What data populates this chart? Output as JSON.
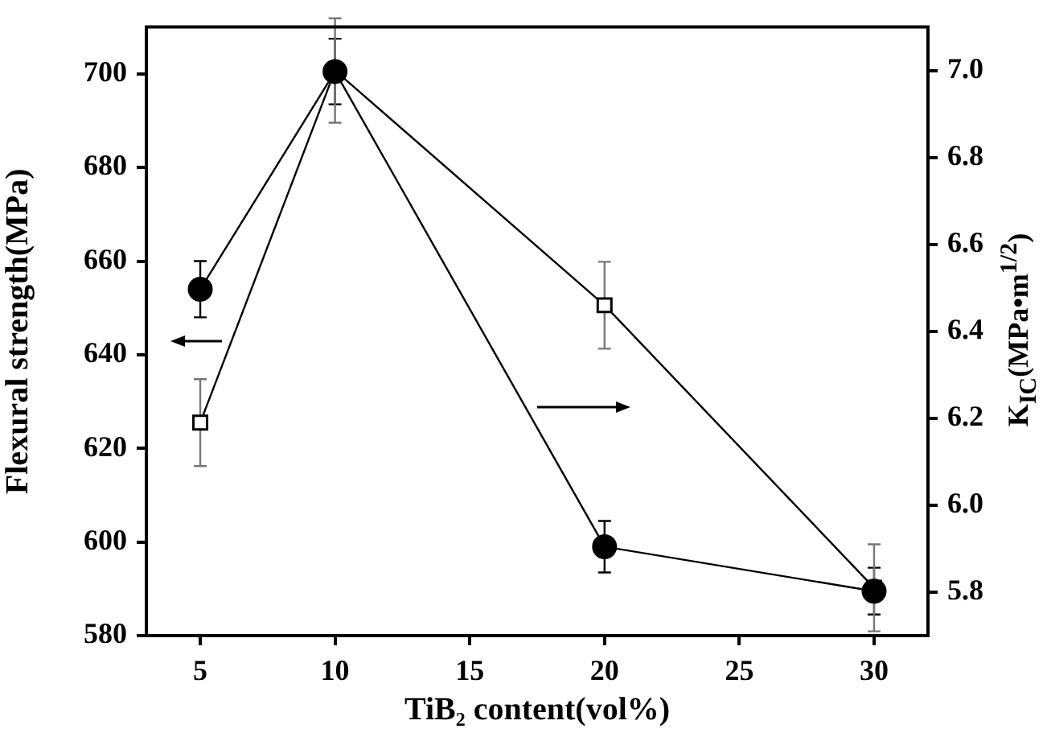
{
  "chart_data": {
    "type": "line",
    "xlabel": "TiB₂ content(vol%)",
    "ylabel": "Flexural strength(MPa)",
    "y2label": "K$_{IC}$(MPa•m$^{1/2}$)",
    "x": [
      5,
      10,
      20,
      30
    ],
    "xlim": [
      3,
      32
    ],
    "xticks": [
      5,
      10,
      15,
      20,
      25,
      30
    ],
    "ylim": [
      580,
      710
    ],
    "yticks": [
      580,
      600,
      620,
      640,
      660,
      680,
      700
    ],
    "y2lim": [
      5.7,
      7.1
    ],
    "y2ticks": [
      {
        "value": 5.8,
        "label": "5.8"
      },
      {
        "value": 6.0,
        "label": "6.0"
      },
      {
        "value": 6.2,
        "label": "6.2"
      },
      {
        "value": 6.4,
        "label": "6.4"
      },
      {
        "value": 6.6,
        "label": "6.6"
      },
      {
        "value": 6.8,
        "label": "6.8"
      },
      {
        "value": 7.0,
        "label": "7.0"
      }
    ],
    "series": [
      {
        "color": "#000000",
        "values": [
          654,
          700.5,
          599,
          589.5
        ],
        "errors": [
          6,
          7,
          5.5,
          5
        ],
        "marker": "circle"
      },
      {
        "color": "#000000",
        "values": [
          6.19,
          7.0,
          6.46,
          5.81
        ],
        "errors": [
          0.1,
          0.12,
          0.1,
          0.1
        ],
        "marker": "square",
        "axis": "y2"
      }
    ],
    "grid": false,
    "legend": false,
    "line_style": "solid"
  }
}
